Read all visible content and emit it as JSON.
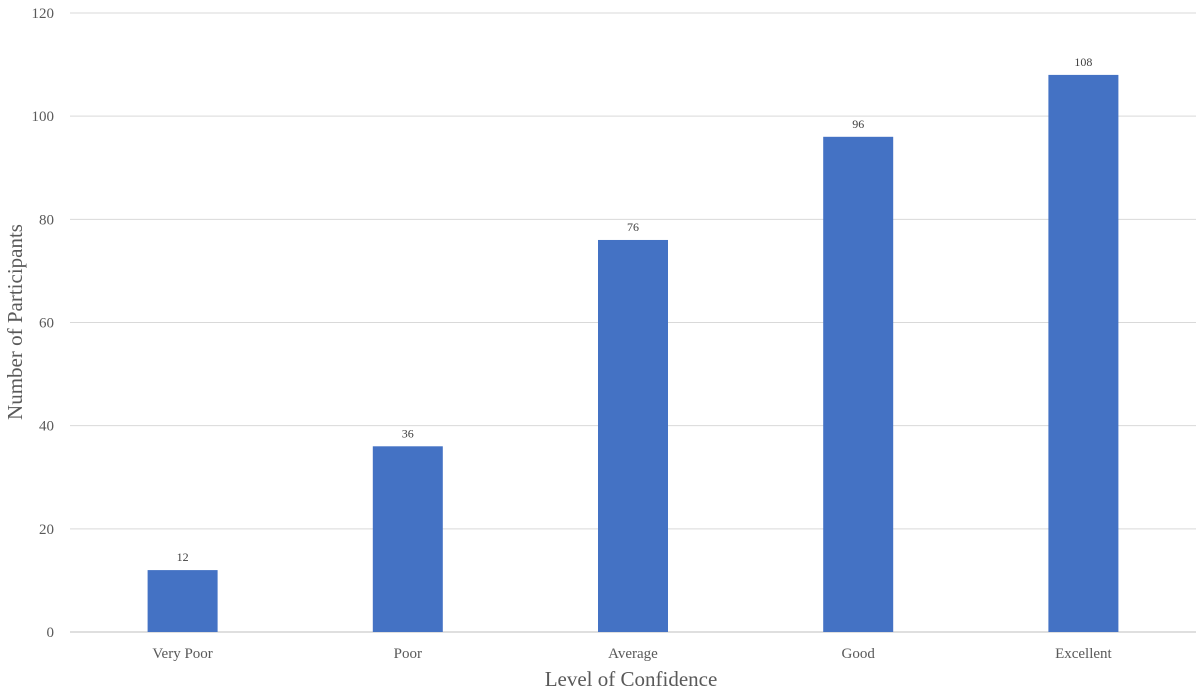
{
  "chart_data": {
    "type": "bar",
    "title": "",
    "xlabel": "Level of Confidence",
    "ylabel": "Number of Participants",
    "categories": [
      "Very Poor",
      "Poor",
      "Average",
      "Good",
      "Excellent"
    ],
    "values": [
      12,
      36,
      76,
      96,
      108
    ],
    "data_labels": [
      "12",
      "36",
      "76",
      "96",
      "108"
    ],
    "ylim": [
      0,
      120
    ],
    "yticks": [
      "0",
      "20",
      "40",
      "60",
      "80",
      "100",
      "120"
    ],
    "grid": true,
    "legend": "none",
    "colors": {
      "bar": "#4472C4",
      "grid": "#D9D9D9",
      "axis": "#BFBFBF"
    }
  }
}
